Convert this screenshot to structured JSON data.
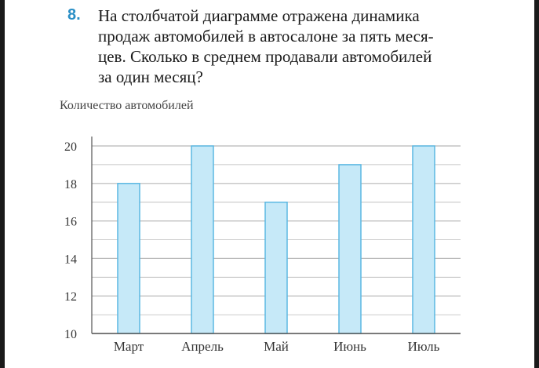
{
  "problem": {
    "number": "8.",
    "lines": [
      "На столбчатой диаграмме отражена динамика",
      "продаж автомобилей в автосалоне за пять меся-",
      "цев. Сколько в среднем продавали автомобилей",
      "за один месяц?"
    ]
  },
  "chart_data": {
    "type": "bar",
    "ylabel": "Количество автомобилей",
    "xlabel": "",
    "categories": [
      "Март",
      "Апрель",
      "Май",
      "Июнь",
      "Июль"
    ],
    "values": [
      18,
      20,
      17,
      19,
      20
    ],
    "ylim": [
      10,
      20
    ],
    "yticks": [
      10,
      12,
      14,
      16,
      18,
      20
    ],
    "minor_gridlines_step": 1,
    "grid": true,
    "colors": {
      "bar_fill": "#c6e9f8",
      "bar_stroke": "#5bb8e2",
      "grid": "#b8b8b8",
      "axis": "#555555"
    }
  }
}
